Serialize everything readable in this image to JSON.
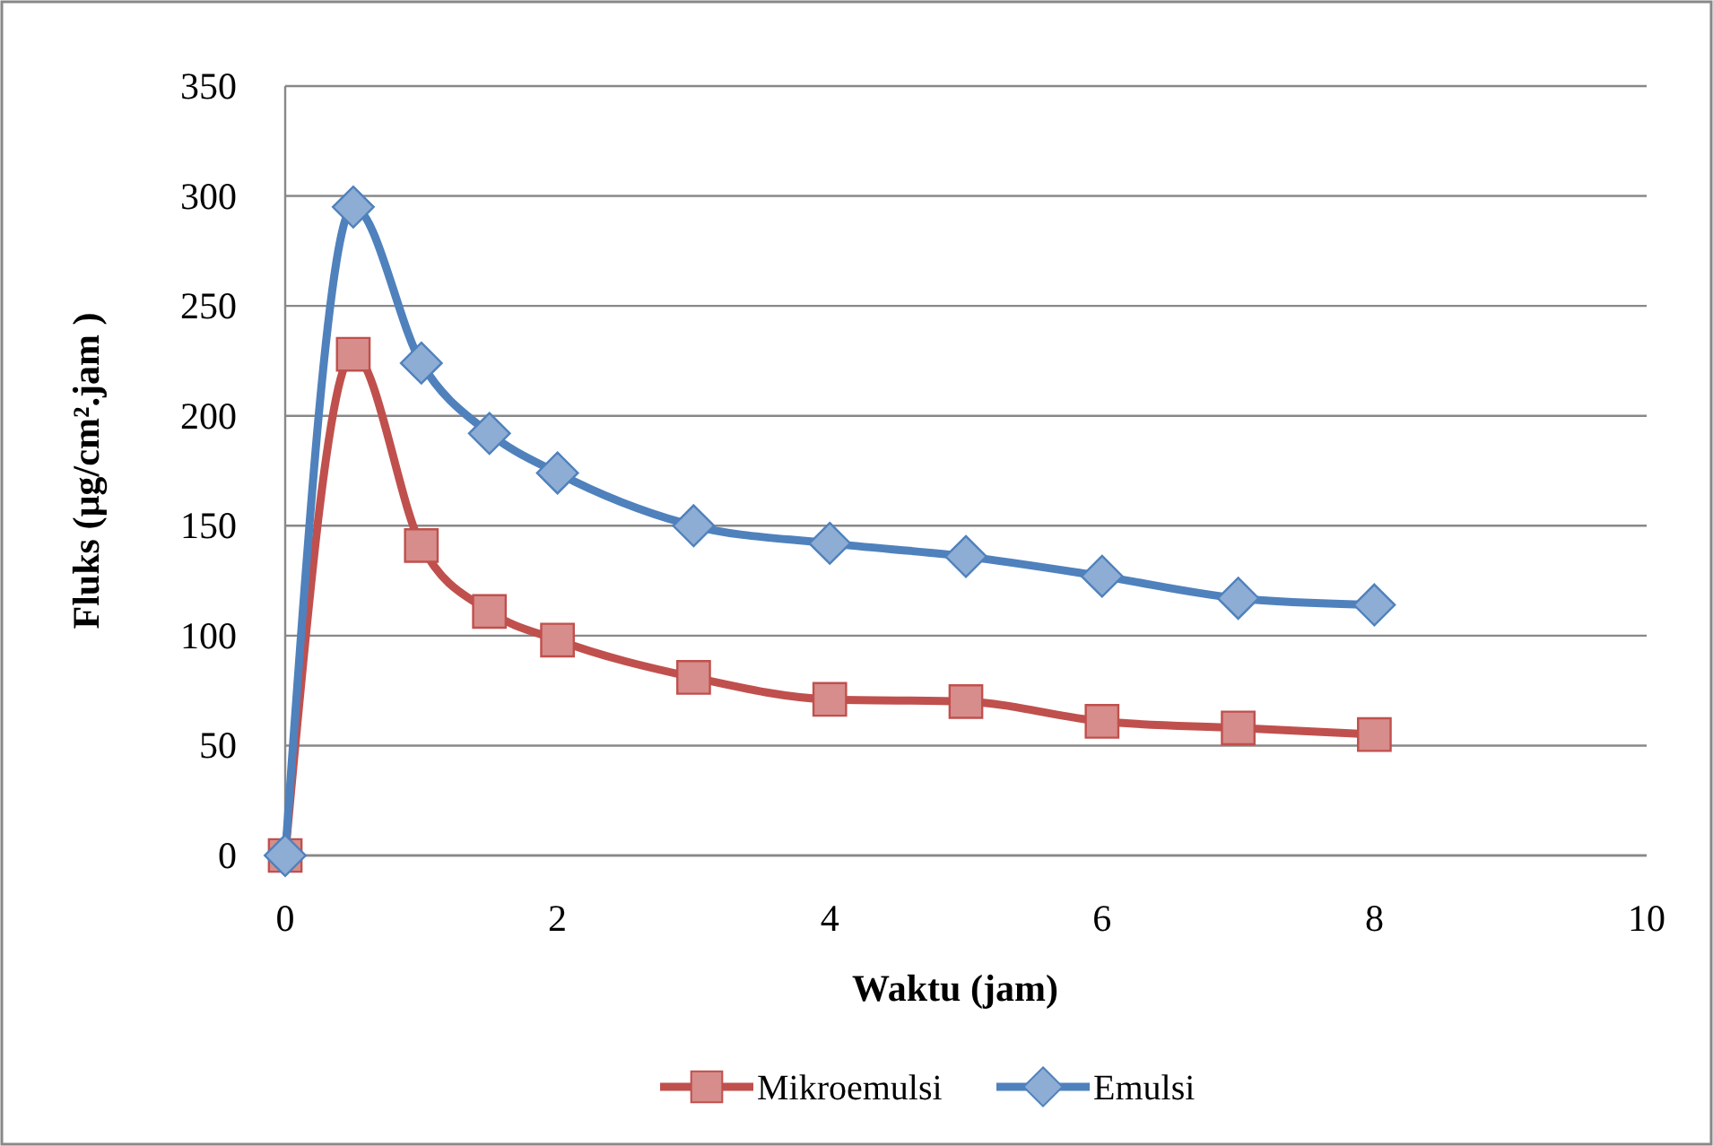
{
  "chart_data": {
    "type": "line",
    "xlabel": "Waktu (jam)",
    "ylabel": "Fluks (µg/cm².jam )",
    "xlim": [
      0,
      10
    ],
    "xticks": [
      0,
      2,
      4,
      6,
      8,
      10
    ],
    "ylim": [
      0,
      350
    ],
    "yticks": [
      0,
      50,
      100,
      150,
      200,
      250,
      300,
      350
    ],
    "grid": "y",
    "legend": "bottom",
    "series": [
      {
        "name": "Mikroemulsi",
        "color": "#c0504d",
        "marker": "square",
        "x": [
          0,
          0.5,
          1,
          1.5,
          2,
          3,
          4,
          5,
          6,
          7,
          8
        ],
        "values": [
          0,
          228,
          141,
          111,
          98,
          81,
          71,
          70,
          61,
          58,
          55
        ]
      },
      {
        "name": "Emulsi",
        "color": "#4f81bd",
        "marker": "diamond",
        "x": [
          0,
          0.5,
          1,
          1.5,
          2,
          3,
          4,
          5,
          6,
          7,
          8
        ],
        "values": [
          0,
          295,
          224,
          192,
          174,
          150,
          142,
          136,
          127,
          117,
          114
        ]
      }
    ]
  }
}
